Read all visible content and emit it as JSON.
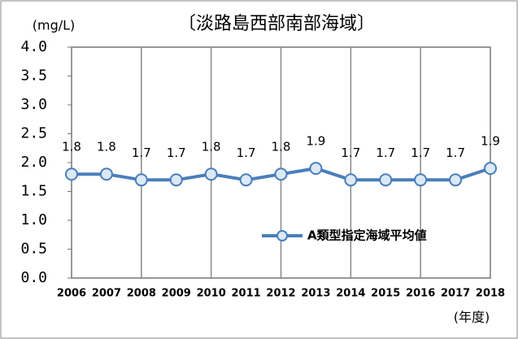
{
  "chart_data": {
    "type": "line",
    "title": "〔淡路島西部南部海域〕",
    "y_label": "(mg/L)",
    "x_label": "(年度)",
    "categories": [
      "2006",
      "2007",
      "2008",
      "2009",
      "2010",
      "2011",
      "2012",
      "2013",
      "2014",
      "2015",
      "2016",
      "2017",
      "2018"
    ],
    "series": [
      {
        "name": "A類型指定海域平均値",
        "color": "#4a7ebb",
        "values": [
          1.8,
          1.8,
          1.7,
          1.7,
          1.8,
          1.7,
          1.8,
          1.9,
          1.7,
          1.7,
          1.7,
          1.7,
          1.9
        ]
      }
    ],
    "ylim": [
      0,
      4
    ],
    "yticks": [
      {
        "value": 0,
        "label": "0.0"
      },
      0.5,
      {
        "value": 1,
        "label": "1.0"
      },
      1.5,
      {
        "value": 2,
        "label": "2.0"
      },
      2.5,
      {
        "value": 3,
        "label": "3.0"
      },
      3.5,
      {
        "value": 4,
        "label": "4.0"
      }
    ]
  }
}
